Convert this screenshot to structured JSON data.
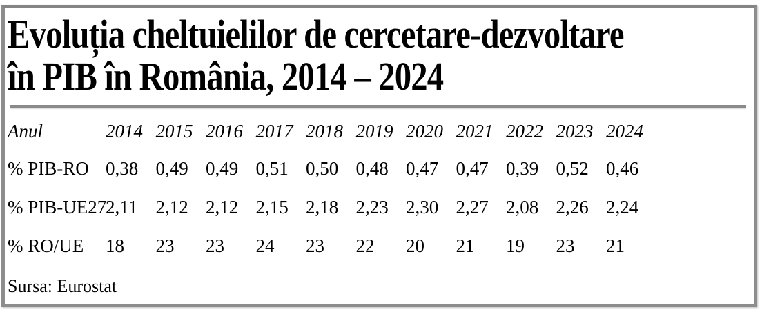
{
  "title": {
    "line1": "Evoluția cheltuielilor de cercetare-dezvoltare",
    "line2": "în PIB în România, 2014 – 2024",
    "full": "Evoluția cheltuielilor de cercetare-dezvoltare în PIB în România, 2014 – 2024"
  },
  "source": "Sursa: Eurostat",
  "chart_data": {
    "type": "table",
    "title": "Evoluția cheltuielilor de cercetare-dezvoltare în PIB în România, 2014 – 2024",
    "columns": [
      "Anul",
      "2014",
      "2015",
      "2016",
      "2017",
      "2018",
      "2019",
      "2020",
      "2021",
      "2022",
      "2023",
      "2024"
    ],
    "rows": [
      [
        "% PIB-RO",
        "0,38",
        "0,49",
        "0,49",
        "0,51",
        "0,50",
        "0,48",
        "0,47",
        "0,47",
        "0,39",
        "0,52",
        "0,46"
      ],
      [
        "% PIB-UE27",
        "2,11",
        "2,12",
        "2,12",
        "2,15",
        "2,18",
        "2,23",
        "2,30",
        "2,27",
        "2,08",
        "2,26",
        "2,24"
      ],
      [
        "% RO/UE",
        "18",
        "23",
        "23",
        "24",
        "23",
        "22",
        "20",
        "21",
        "19",
        "23",
        "21"
      ]
    ],
    "source": "Sursa: Eurostat"
  },
  "colors": {
    "frame-border": "#8d8d8d",
    "title-rule": "#8a8a8a",
    "text": "#000000",
    "background": "#ffffff"
  }
}
